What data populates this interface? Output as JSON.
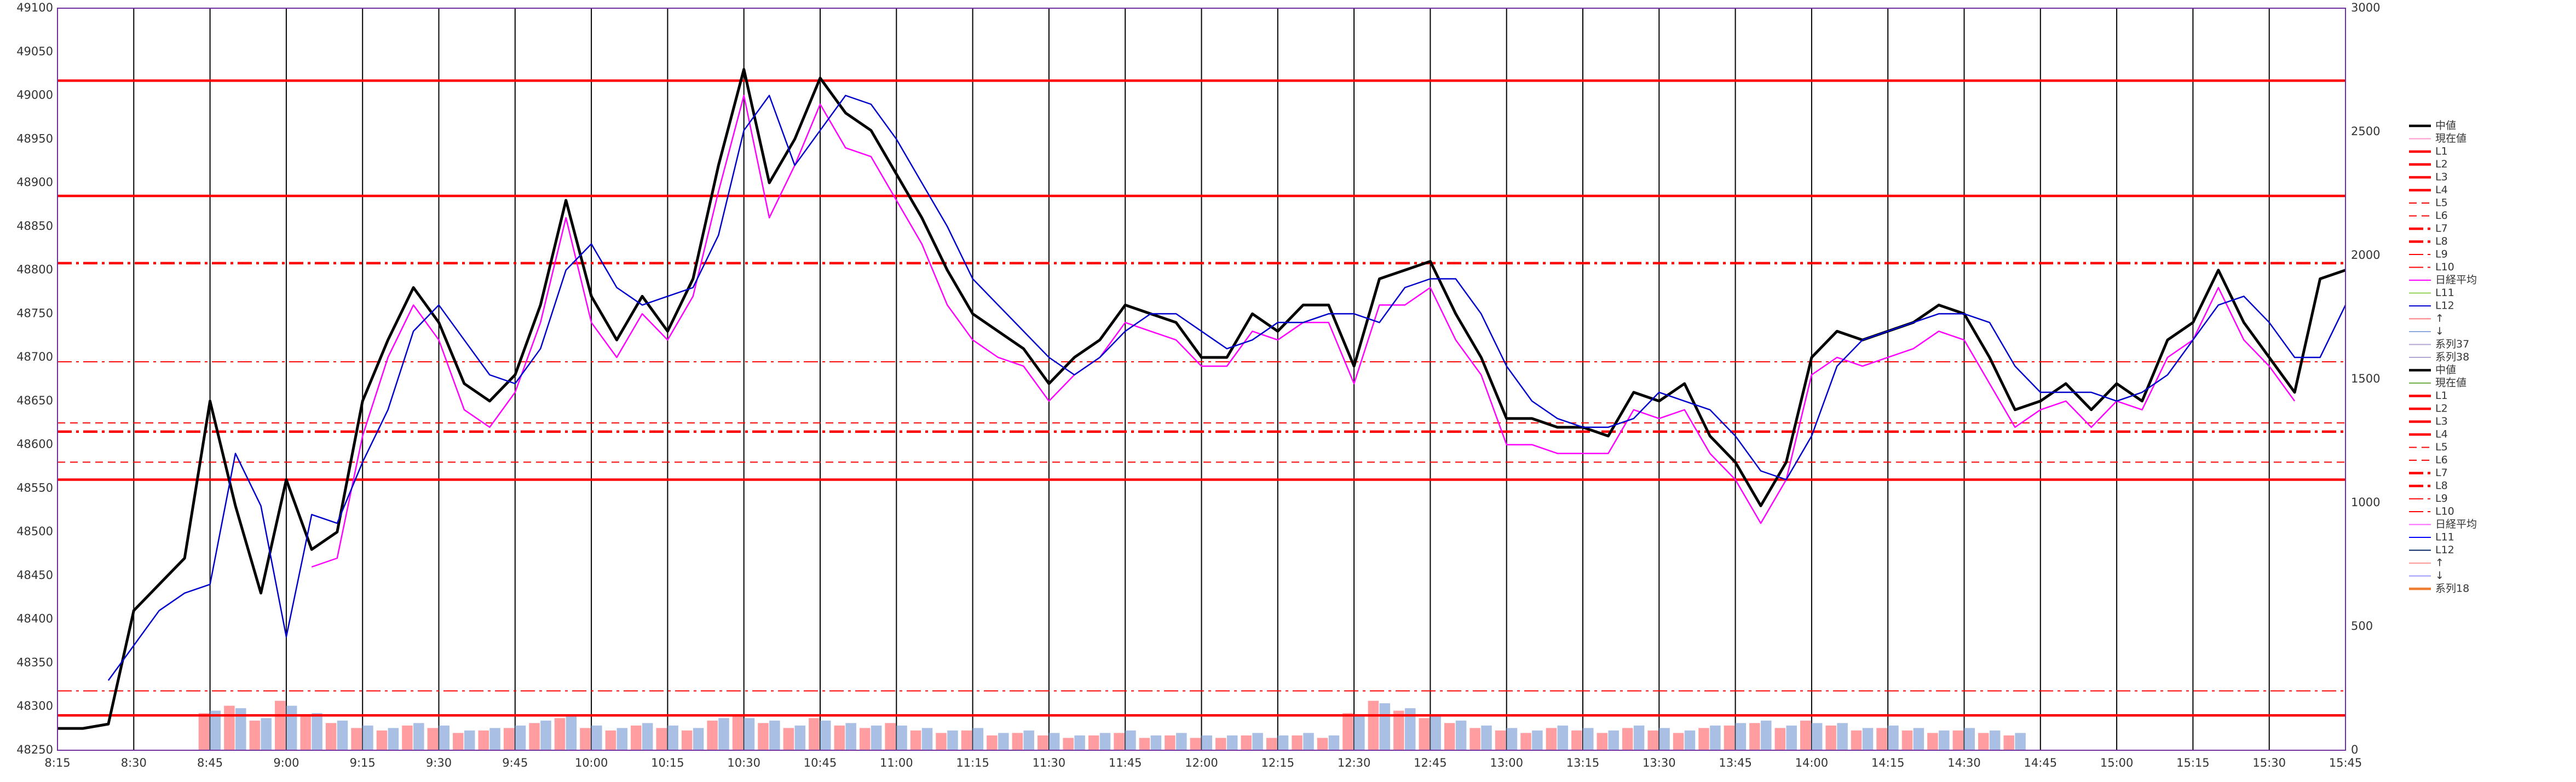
{
  "chart_data": {
    "type": "line",
    "x": [
      "8:15",
      "8:20",
      "8:25",
      "8:30",
      "8:35",
      "8:40",
      "8:45",
      "8:50",
      "8:55",
      "9:00",
      "9:05",
      "9:10",
      "9:15",
      "9:20",
      "9:25",
      "9:30",
      "9:35",
      "9:40",
      "9:45",
      "9:50",
      "9:55",
      "10:00",
      "10:05",
      "10:10",
      "10:15",
      "10:20",
      "10:25",
      "10:30",
      "10:35",
      "10:40",
      "10:45",
      "10:50",
      "10:55",
      "11:00",
      "11:05",
      "11:10",
      "11:15",
      "11:20",
      "11:25",
      "11:30",
      "11:35",
      "11:40",
      "11:45",
      "11:50",
      "11:55",
      "12:00",
      "12:05",
      "12:10",
      "12:15",
      "12:20",
      "12:25",
      "12:30",
      "12:35",
      "12:40",
      "12:45",
      "12:50",
      "12:55",
      "13:00",
      "13:05",
      "13:10",
      "13:15",
      "13:20",
      "13:25",
      "13:30",
      "13:35",
      "13:40",
      "13:45",
      "13:50",
      "13:55",
      "14:00",
      "14:05",
      "14:10",
      "14:15",
      "14:20",
      "14:25",
      "14:30",
      "14:35",
      "14:40",
      "14:45",
      "14:50",
      "14:55",
      "15:00",
      "15:05",
      "15:10",
      "15:15",
      "15:20",
      "15:25",
      "15:30",
      "15:35",
      "15:40",
      "15:45"
    ],
    "xlim": [
      "8:15",
      "15:45"
    ],
    "xticks": [
      "8:15",
      "8:30",
      "8:45",
      "9:00",
      "9:15",
      "9:30",
      "9:45",
      "10:00",
      "10:15",
      "10:30",
      "10:45",
      "11:00",
      "11:15",
      "11:30",
      "11:45",
      "12:00",
      "12:15",
      "12:30",
      "12:45",
      "13:00",
      "13:15",
      "13:30",
      "13:45",
      "14:00",
      "14:15",
      "14:30",
      "14:45",
      "15:00",
      "15:15",
      "15:30",
      "15:45"
    ],
    "ylim": [
      48250,
      49100
    ],
    "yticks": [
      48250,
      48300,
      48350,
      48400,
      48450,
      48500,
      48550,
      48600,
      48650,
      48700,
      48750,
      48800,
      48850,
      48900,
      48950,
      49000,
      49050,
      49100
    ],
    "y2lim": [
      0,
      3000
    ],
    "y2ticks": [
      0,
      500,
      1000,
      1500,
      2000,
      2500,
      3000
    ],
    "grid": true,
    "legend": "right",
    "series": [
      {
        "name": "中値",
        "color": "#000000",
        "style": "solid",
        "weight": "thick",
        "values": [
          48275,
          48275,
          48280,
          48410,
          48440,
          48470,
          48650,
          48530,
          48430,
          48560,
          48480,
          48500,
          48650,
          48720,
          48780,
          48740,
          48670,
          48650,
          48680,
          48760,
          48880,
          48770,
          48720,
          48770,
          48730,
          48790,
          48920,
          49030,
          48900,
          48950,
          49020,
          48980,
          48960,
          48910,
          48860,
          48800,
          48750,
          48730,
          48710,
          48670,
          48700,
          48720,
          48760,
          48750,
          48740,
          48700,
          48700,
          48750,
          48730,
          48760,
          48760,
          48690,
          48790,
          48800,
          48810,
          48750,
          48700,
          48630,
          48630,
          48620,
          48620,
          48610,
          48660,
          48650,
          48670,
          48610,
          48580,
          48530,
          48580,
          48700,
          48730,
          48720,
          48730,
          48740,
          48760,
          48750,
          48700,
          48640,
          48650,
          48670,
          48640,
          48670,
          48650,
          48720,
          48740,
          48800,
          48740,
          48700,
          48660,
          48790,
          48800
        ]
      },
      {
        "name": "現在値",
        "color": "#ff99cc",
        "style": "solid",
        "weight": "thin"
      },
      {
        "name": "L1",
        "color": "#ff0000",
        "style": "solid",
        "weight": "thick",
        "level": 49017
      },
      {
        "name": "L2",
        "color": "#ff0000",
        "style": "solid",
        "weight": "thick",
        "level": 48885
      },
      {
        "name": "L3",
        "color": "#ff0000",
        "style": "solid",
        "weight": "thick",
        "level": 48560
      },
      {
        "name": "L4",
        "color": "#ff0000",
        "style": "solid",
        "weight": "thick",
        "level": 48290
      },
      {
        "name": "L5",
        "color": "#ff0000",
        "style": "dash",
        "weight": "thin",
        "level": 48625
      },
      {
        "name": "L6",
        "color": "#ff0000",
        "style": "dash",
        "weight": "thin",
        "level": 48580
      },
      {
        "name": "L7",
        "color": "#ff0000",
        "style": "dashdot",
        "weight": "thick",
        "level": 48808
      },
      {
        "name": "L8",
        "color": "#ff0000",
        "style": "dashdot",
        "weight": "thick",
        "level": 48615
      },
      {
        "name": "L9",
        "color": "#ff0000",
        "style": "dashdot",
        "weight": "thin",
        "level": 48695
      },
      {
        "name": "L10",
        "color": "#ff0000",
        "style": "dashdot",
        "weight": "thin",
        "level": 48318
      },
      {
        "name": "日経平均",
        "color": "#ff00ff",
        "style": "solid",
        "weight": "thin",
        "values": [
          null,
          null,
          null,
          null,
          null,
          null,
          null,
          null,
          null,
          null,
          48460,
          48470,
          48610,
          48700,
          48760,
          48720,
          48640,
          48620,
          48660,
          48740,
          48860,
          48740,
          48700,
          48750,
          48720,
          48770,
          48890,
          49000,
          48860,
          48920,
          48990,
          48940,
          48930,
          48880,
          48830,
          48760,
          48720,
          48700,
          48690,
          48650,
          48680,
          48700,
          48740,
          48730,
          48720,
          48690,
          48690,
          48730,
          48720,
          48740,
          48740,
          48670,
          48760,
          48760,
          48780,
          48720,
          48680,
          48600,
          48600,
          48590,
          48590,
          48590,
          48640,
          48630,
          48640,
          48590,
          48560,
          48510,
          48560,
          48680,
          48700,
          48690,
          48700,
          48710,
          48730,
          48720,
          48670,
          48620,
          48640,
          48650,
          48620,
          48650,
          48640,
          48700,
          48720,
          48780,
          48720,
          48690,
          48650,
          null,
          null
        ]
      },
      {
        "name": "L11",
        "color": "#92d050",
        "style": "solid",
        "weight": "thin"
      },
      {
        "name": "L12",
        "color": "#0000cc",
        "style": "solid",
        "weight": "thin",
        "values": [
          null,
          null,
          48330,
          48370,
          48410,
          48430,
          48440,
          48590,
          48530,
          48380,
          48520,
          48510,
          48580,
          48640,
          48730,
          48760,
          48720,
          48680,
          48670,
          48710,
          48800,
          48830,
          48780,
          48760,
          48770,
          48780,
          48840,
          48960,
          49000,
          48920,
          48960,
          49000,
          48990,
          48950,
          48900,
          48850,
          48790,
          48760,
          48730,
          48700,
          48680,
          48700,
          48730,
          48750,
          48750,
          48730,
          48710,
          48720,
          48740,
          48740,
          48750,
          48750,
          48740,
          48780,
          48790,
          48790,
          48750,
          48690,
          48650,
          48630,
          48620,
          48620,
          48630,
          48660,
          48650,
          48640,
          48610,
          48570,
          48560,
          48610,
          48690,
          48720,
          48730,
          48740,
          48750,
          48750,
          48740,
          48690,
          48660,
          48660,
          48660,
          48650,
          48660,
          48680,
          48720,
          48760,
          48770,
          48740,
          48700,
          48700,
          48760
        ]
      },
      {
        "name": "↑",
        "color": "#ff7c80",
        "style": "solid",
        "weight": "thin",
        "axis": "y2",
        "values": [
          null,
          null,
          null,
          null,
          null,
          null,
          150,
          180,
          120,
          200,
          140,
          110,
          90,
          80,
          100,
          90,
          70,
          80,
          90,
          110,
          130,
          90,
          80,
          100,
          90,
          80,
          120,
          140,
          110,
          90,
          130,
          100,
          90,
          110,
          80,
          70,
          80,
          60,
          70,
          60,
          50,
          60,
          70,
          50,
          60,
          50,
          50,
          60,
          50,
          60,
          50,
          150,
          200,
          160,
          130,
          110,
          90,
          80,
          70,
          90,
          80,
          70,
          90,
          80,
          70,
          90,
          100,
          110,
          90,
          120,
          100,
          80,
          90,
          80,
          70,
          80,
          70,
          60,
          null,
          null,
          null,
          null,
          null,
          null,
          null,
          null,
          null,
          null,
          null,
          null,
          null
        ]
      },
      {
        "name": "↓",
        "color": "#8ea9db",
        "style": "solid",
        "weight": "thin",
        "axis": "y2",
        "values": [
          null,
          null,
          null,
          null,
          null,
          null,
          160,
          170,
          130,
          180,
          150,
          120,
          100,
          90,
          110,
          100,
          80,
          90,
          100,
          120,
          140,
          100,
          90,
          110,
          100,
          90,
          130,
          130,
          120,
          100,
          120,
          110,
          100,
          100,
          90,
          80,
          90,
          70,
          80,
          70,
          60,
          70,
          80,
          60,
          70,
          60,
          60,
          70,
          60,
          70,
          60,
          140,
          190,
          170,
          140,
          120,
          100,
          90,
          80,
          100,
          90,
          80,
          100,
          90,
          80,
          100,
          110,
          120,
          100,
          110,
          110,
          90,
          100,
          90,
          80,
          90,
          80,
          70,
          null,
          null,
          null,
          null,
          null,
          null,
          null,
          null,
          null,
          null,
          null,
          null,
          null
        ]
      },
      {
        "name": "系列37",
        "color": "#b4a7d6",
        "style": "solid",
        "weight": "thin"
      },
      {
        "name": "系列38",
        "color": "#b4a7d6",
        "style": "solid",
        "weight": "thin"
      },
      {
        "name": "中値",
        "color": "#000000",
        "style": "solid",
        "weight": "thick"
      },
      {
        "name": "現在値",
        "color": "#70ad47",
        "style": "solid",
        "weight": "thin"
      },
      {
        "name": "L1",
        "color": "#ff0000",
        "style": "solid",
        "weight": "thick"
      },
      {
        "name": "L2",
        "color": "#ff0000",
        "style": "solid",
        "weight": "thick"
      },
      {
        "name": "L3",
        "color": "#ff0000",
        "style": "solid",
        "weight": "thick"
      },
      {
        "name": "L4",
        "color": "#ff0000",
        "style": "solid",
        "weight": "thick"
      },
      {
        "name": "L5",
        "color": "#ff0000",
        "style": "dash",
        "weight": "thin"
      },
      {
        "name": "L6",
        "color": "#ff0000",
        "style": "dash",
        "weight": "thin"
      },
      {
        "name": "L7",
        "color": "#ff0000",
        "style": "dashdot",
        "weight": "thick"
      },
      {
        "name": "L8",
        "color": "#ff0000",
        "style": "dashdot",
        "weight": "thick"
      },
      {
        "name": "L9",
        "color": "#ff0000",
        "style": "dashdot",
        "weight": "thin"
      },
      {
        "name": "L10",
        "color": "#ff0000",
        "style": "dashdot",
        "weight": "thin"
      },
      {
        "name": "日経平均",
        "color": "#ff66ff",
        "style": "solid",
        "weight": "thin"
      },
      {
        "name": "L11",
        "color": "#0000ff",
        "style": "solid",
        "weight": "thin"
      },
      {
        "name": "L12",
        "color": "#002060",
        "style": "solid",
        "weight": "thin"
      },
      {
        "name": "↑",
        "color": "#ff9999",
        "style": "solid",
        "weight": "thin"
      },
      {
        "name": "↓",
        "color": "#9999ff",
        "style": "solid",
        "weight": "thin"
      },
      {
        "name": "系列18",
        "color": "#ed7d31",
        "style": "solid",
        "weight": "thick"
      }
    ]
  }
}
